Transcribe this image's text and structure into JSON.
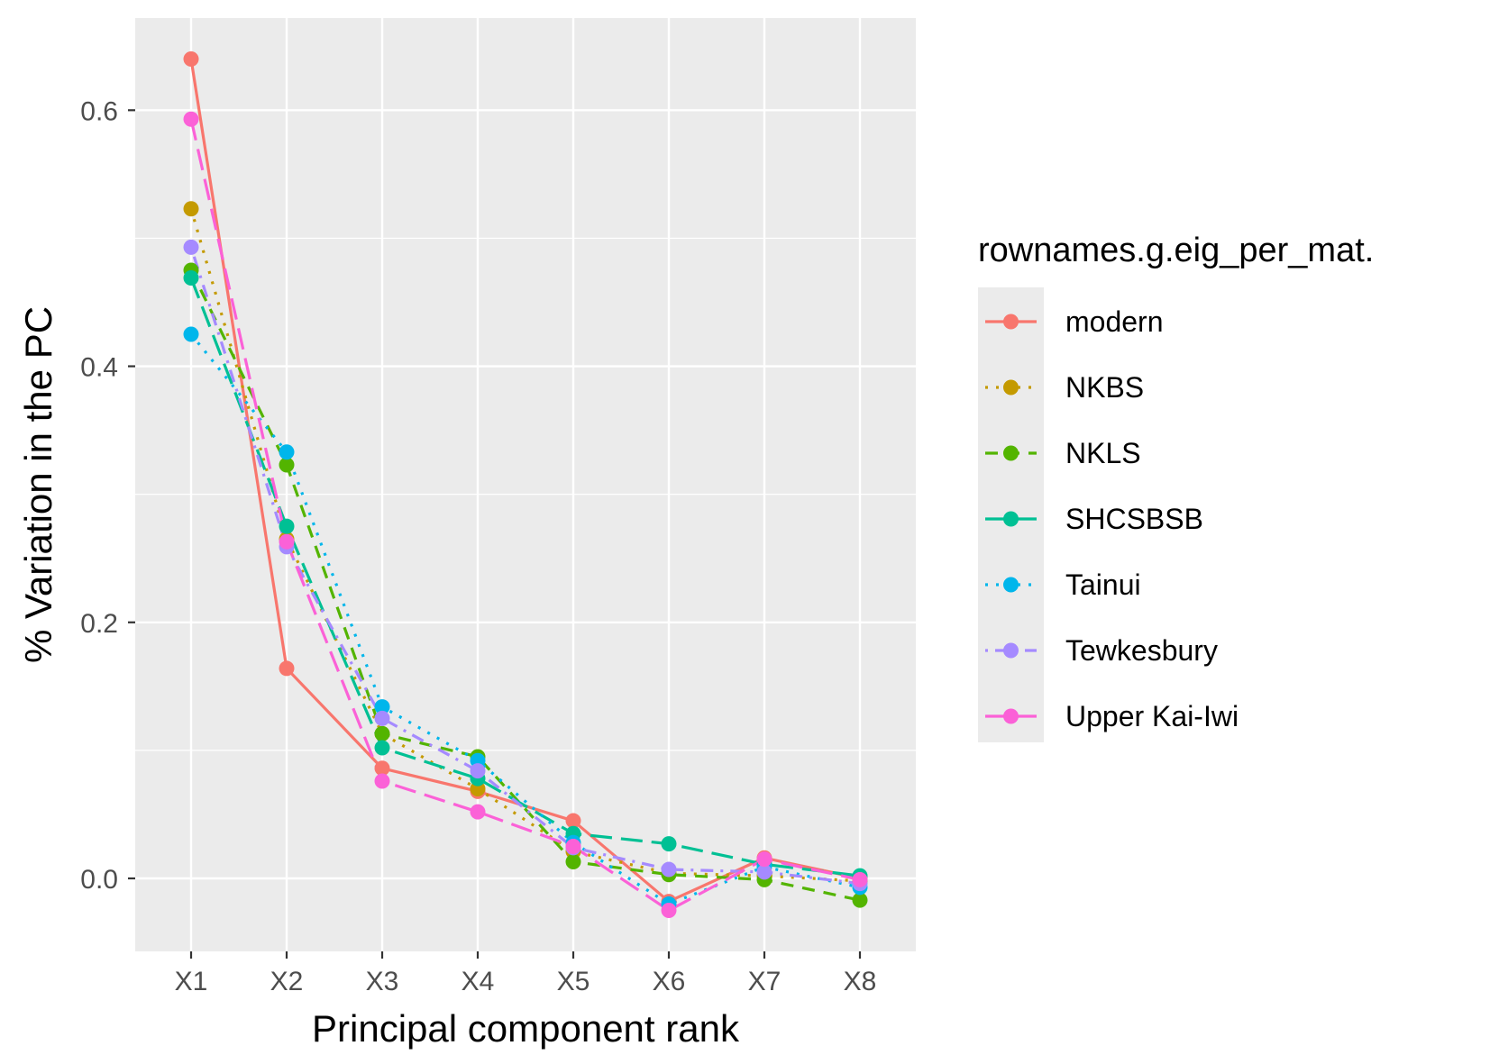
{
  "chart_data": {
    "type": "line",
    "title": "",
    "xlabel": "Principal component rank",
    "ylabel": "% Variation in the PC",
    "categories": [
      "X1",
      "X2",
      "X3",
      "X4",
      "X5",
      "X6",
      "X7",
      "X8"
    ],
    "ylim": [
      -0.057,
      0.672
    ],
    "yticks": [
      0.0,
      0.2,
      0.4,
      0.6
    ],
    "ytick_labels": [
      "0.0",
      "0.2",
      "0.4",
      "0.6"
    ],
    "grid": true,
    "legend": {
      "title": "rownames.g.eig_per_mat.",
      "position": "right"
    },
    "series": [
      {
        "name": "modern",
        "color": "#F8766D",
        "dash": "solid",
        "values": [
          0.64,
          0.164,
          0.086,
          0.068,
          0.045,
          -0.018,
          0.016,
          0.0
        ]
      },
      {
        "name": "NKBS",
        "color": "#C49A00",
        "dash": "dotted",
        "values": [
          0.523,
          0.265,
          0.113,
          0.07,
          0.021,
          0.004,
          0.002,
          -0.002
        ]
      },
      {
        "name": "NKLS",
        "color": "#53B400",
        "dash": "dashed",
        "values": [
          0.475,
          0.323,
          0.113,
          0.095,
          0.013,
          0.003,
          -0.001,
          -0.017
        ]
      },
      {
        "name": "SHCSBSB",
        "color": "#00C094",
        "dash": "longdash",
        "values": [
          0.469,
          0.275,
          0.102,
          0.078,
          0.035,
          0.027,
          0.011,
          0.002
        ]
      },
      {
        "name": "Tainui",
        "color": "#00B6EB",
        "dash": "dotted",
        "values": [
          0.425,
          0.333,
          0.134,
          0.092,
          0.028,
          -0.02,
          0.009,
          -0.007
        ]
      },
      {
        "name": "Tewkesbury",
        "color": "#A58AFF",
        "dash": "dotdash",
        "values": [
          0.493,
          0.259,
          0.125,
          0.084,
          0.024,
          0.007,
          0.005,
          -0.004
        ]
      },
      {
        "name": "Upper Kai-Iwi",
        "color": "#FB61D7",
        "dash": "longdash",
        "values": [
          0.593,
          0.263,
          0.076,
          0.052,
          0.025,
          -0.025,
          0.015,
          -0.001
        ]
      }
    ]
  }
}
